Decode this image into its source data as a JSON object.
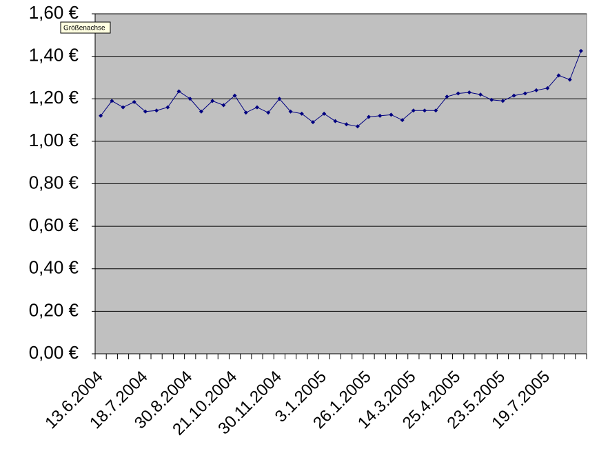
{
  "chart_data": {
    "type": "line",
    "tooltip": "Größenachse",
    "categories": [
      "13.6.2004",
      null,
      null,
      null,
      "18.7.2004",
      null,
      null,
      null,
      "30.8.2004",
      null,
      null,
      null,
      "21.10.2004",
      null,
      null,
      null,
      "30.11.2004",
      null,
      null,
      null,
      "3.1.2005",
      null,
      null,
      null,
      "26.1.2005",
      null,
      null,
      null,
      "14.3.2005",
      null,
      null,
      null,
      "25.4.2005",
      null,
      null,
      null,
      "23.5.2005",
      null,
      null,
      null,
      "19.7.2005",
      null,
      null,
      null
    ],
    "series": [
      {
        "color": "#000080",
        "values": [
          1.12,
          1.19,
          1.16,
          1.185,
          1.14,
          1.145,
          1.16,
          1.235,
          1.2,
          1.14,
          1.19,
          1.17,
          1.215,
          1.135,
          1.16,
          1.135,
          1.2,
          1.14,
          1.13,
          1.09,
          1.13,
          1.095,
          1.08,
          1.07,
          1.115,
          1.12,
          1.125,
          1.1,
          1.145,
          1.145,
          1.145,
          1.21,
          1.225,
          1.23,
          1.22,
          1.195,
          1.19,
          1.215,
          1.225,
          1.24,
          1.25,
          1.31,
          1.29,
          1.425
        ]
      }
    ],
    "ylim": [
      0,
      1.6
    ],
    "yticks": [
      {
        "value": 0,
        "label": "0,00 €"
      },
      {
        "value": 0.2,
        "label": "0,20 €"
      },
      {
        "value": 0.4,
        "label": "0,40 €"
      },
      {
        "value": 0.6,
        "label": "0,60 €"
      },
      {
        "value": 0.8,
        "label": "0,80 €"
      },
      {
        "value": 1,
        "label": "1,00 €"
      },
      {
        "value": 1.2,
        "label": "1,20 €"
      },
      {
        "value": 1.4,
        "label": "1,40 €"
      },
      {
        "value": 1.6,
        "label": "1,60 €"
      }
    ],
    "grid": true,
    "plot_background": "#c0c0c0"
  }
}
